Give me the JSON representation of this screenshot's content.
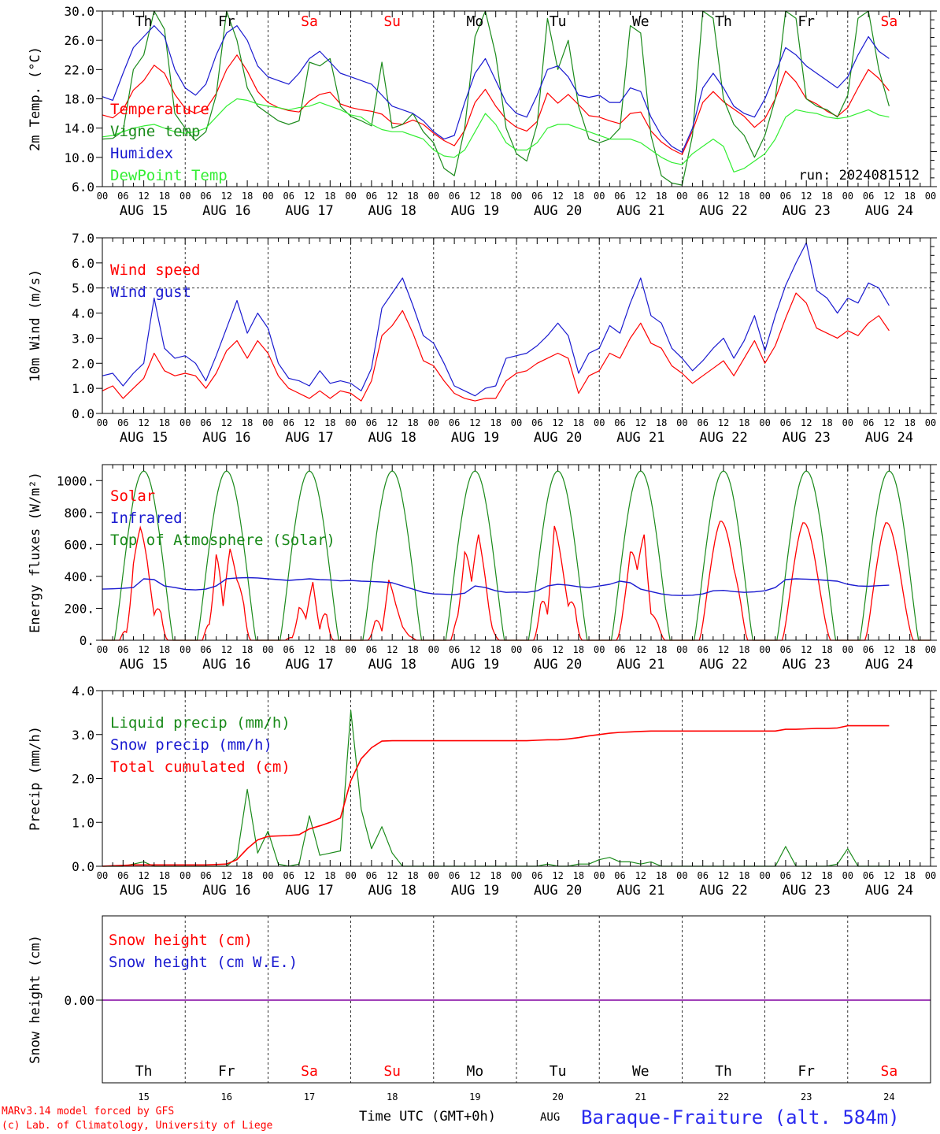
{
  "colors": {
    "red": "#ff0000",
    "dark_green": "#1a8a1a",
    "blue": "#1a1ad0",
    "light_green": "#33ee33",
    "purple": "#8000a0",
    "weekend": "#ff0000",
    "weekday": "#000000",
    "grid": "#000000",
    "title": "#2a2aee"
  },
  "days": {
    "names": [
      "Th",
      "Fr",
      "Sa",
      "Su",
      "Mo",
      "Tu",
      "We",
      "Th",
      "Fr",
      "Sa"
    ],
    "weekend": [
      false,
      false,
      true,
      true,
      false,
      false,
      false,
      false,
      false,
      true
    ],
    "date_labels": [
      "AUG 15",
      "AUG 16",
      "AUG 17",
      "AUG 18",
      "AUG 19",
      "AUG 20",
      "AUG 21",
      "AUG 22",
      "AUG 23",
      "AUG 24"
    ],
    "day_numbers": [
      "15",
      "16",
      "17",
      "18",
      "19",
      "20",
      "21",
      "22",
      "23",
      "24"
    ],
    "hour_ticks": [
      "00",
      "06",
      "12",
      "18"
    ],
    "final_hour": "00"
  },
  "footer": {
    "model": "MARv3.14 model forced by GFS",
    "credit": "(c) Lab. of Climatology, University of Liege",
    "xlabel": "Time UTC (GMT+0h)",
    "month": "AUG",
    "station": "Baraque-Fraiture (alt. 584m)"
  },
  "chart_data": [
    {
      "type": "line",
      "ylabel": "2m Temp. (°C)",
      "ylim": [
        6.0,
        30.0
      ],
      "yticks": [
        "6.0",
        "10.0",
        "14.0",
        "18.0",
        "22.0",
        "26.0",
        "30.0"
      ],
      "annotation": "run: 2024081512",
      "x_hours_step": 3,
      "series": [
        {
          "name": "Temperature",
          "color": "red",
          "values": [
            15.8,
            15.4,
            16.5,
            19.2,
            20.5,
            22.6,
            21.5,
            18.6,
            16.7,
            16.0,
            16.6,
            18.7,
            22.0,
            24.0,
            21.8,
            19.0,
            17.5,
            16.8,
            16.4,
            16.2,
            17.7,
            18.6,
            18.9,
            17.3,
            16.8,
            16.5,
            16.3,
            15.9,
            14.7,
            14.5,
            15.1,
            14.5,
            13.3,
            12.3,
            11.6,
            13.7,
            17.5,
            19.3,
            17.0,
            15.2,
            14.1,
            13.6,
            14.9,
            18.8,
            17.4,
            18.6,
            17.2,
            15.7,
            15.5,
            15.0,
            14.6,
            16.0,
            16.2,
            13.6,
            12.1,
            11.1,
            10.4,
            13.6,
            17.5,
            19.0,
            17.6,
            16.6,
            15.6,
            14.1,
            15.3,
            18.0,
            21.8,
            20.3,
            18.0,
            17.3,
            16.3,
            15.6,
            16.8,
            19.5,
            22.0,
            20.8,
            19.1
          ]
        },
        {
          "name": "Vigne temp",
          "color": "dark_green",
          "values": [
            12.5,
            12.6,
            13.6,
            22.0,
            24.0,
            30.5,
            27.5,
            16.0,
            14.0,
            12.3,
            13.5,
            18.5,
            30.5,
            26.0,
            19.5,
            17.0,
            16.0,
            15.0,
            14.5,
            15.0,
            23.0,
            22.5,
            23.5,
            17.0,
            15.6,
            15.0,
            14.3,
            23.0,
            14.0,
            14.5,
            16.0,
            13.5,
            12.0,
            8.5,
            7.5,
            14.0,
            26.5,
            30.0,
            24.0,
            14.0,
            10.5,
            9.5,
            14.5,
            29.0,
            22.0,
            26.0,
            17.0,
            12.5,
            12.0,
            12.5,
            14.0,
            28.0,
            27.0,
            13.0,
            7.5,
            6.5,
            6.2,
            13.0,
            30.5,
            29.0,
            18.0,
            14.5,
            13.0,
            10.0,
            13.0,
            18.0,
            30.5,
            29.0,
            18.0,
            17.0,
            16.5,
            15.5,
            18.5,
            29.0,
            30.5,
            22.0,
            17.0
          ]
        },
        {
          "name": "Humidex",
          "color": "blue",
          "values": [
            18.3,
            17.8,
            21.5,
            25.0,
            26.5,
            28.0,
            26.5,
            22.0,
            19.5,
            18.5,
            20.0,
            24.0,
            27.0,
            28.0,
            26.0,
            22.5,
            21.0,
            20.5,
            20.0,
            21.5,
            23.5,
            24.5,
            23.0,
            21.5,
            21.0,
            20.5,
            20.0,
            18.5,
            17.0,
            16.5,
            16.0,
            15.0,
            13.5,
            12.5,
            13.0,
            17.5,
            21.5,
            23.5,
            20.5,
            17.5,
            16.0,
            15.5,
            18.5,
            22.0,
            22.5,
            21.0,
            18.5,
            18.2,
            18.5,
            17.5,
            17.5,
            19.5,
            19.0,
            15.5,
            13.0,
            11.5,
            10.7,
            14.0,
            19.5,
            21.5,
            19.5,
            17.0,
            16.0,
            15.5,
            18.0,
            21.5,
            25.0,
            24.0,
            22.5,
            21.5,
            20.5,
            19.5,
            21.0,
            24.0,
            26.5,
            24.5,
            23.5
          ]
        },
        {
          "name": "DewPoint Temp",
          "color": "light_green",
          "values": [
            12.8,
            13.0,
            13.5,
            14.0,
            14.3,
            14.5,
            14.0,
            13.5,
            13.3,
            13.5,
            14.0,
            15.5,
            17.0,
            18.0,
            17.8,
            17.3,
            17.0,
            16.8,
            16.5,
            16.8,
            17.0,
            17.5,
            17.0,
            16.5,
            15.8,
            15.5,
            14.5,
            13.8,
            13.5,
            13.5,
            13.0,
            12.5,
            11.0,
            10.2,
            10.0,
            11.0,
            13.5,
            16.0,
            14.5,
            12.0,
            11.0,
            11.0,
            12.0,
            14.0,
            14.5,
            14.5,
            14.0,
            13.5,
            13.0,
            12.5,
            12.5,
            12.5,
            12.0,
            11.0,
            10.0,
            9.3,
            9.0,
            10.5,
            11.5,
            12.5,
            11.5,
            8.0,
            8.5,
            9.5,
            10.5,
            12.5,
            15.5,
            16.5,
            16.2,
            16.0,
            15.5,
            15.3,
            15.5,
            16.0,
            16.5,
            15.8,
            15.5
          ]
        }
      ]
    },
    {
      "type": "line",
      "ylabel": "10m Wind (m/s)",
      "ylim": [
        0.0,
        7.0
      ],
      "yticks": [
        "0.0",
        "1.0",
        "2.0",
        "3.0",
        "4.0",
        "5.0",
        "6.0",
        "7.0"
      ],
      "reference_line": 5.0,
      "x_hours_step": 3,
      "series": [
        {
          "name": "Wind speed",
          "color": "red",
          "values": [
            0.9,
            1.1,
            0.6,
            1.0,
            1.4,
            2.4,
            1.7,
            1.5,
            1.6,
            1.5,
            1.0,
            1.6,
            2.5,
            2.9,
            2.2,
            2.9,
            2.4,
            1.5,
            1.0,
            0.8,
            0.6,
            0.9,
            0.6,
            0.9,
            0.8,
            0.5,
            1.3,
            3.1,
            3.5,
            4.1,
            3.2,
            2.1,
            1.9,
            1.3,
            0.8,
            0.6,
            0.5,
            0.6,
            0.6,
            1.3,
            1.6,
            1.7,
            2.0,
            2.2,
            2.4,
            2.2,
            0.8,
            1.5,
            1.7,
            2.4,
            2.2,
            3.0,
            3.6,
            2.8,
            2.6,
            1.9,
            1.6,
            1.2,
            1.5,
            1.8,
            2.1,
            1.5,
            2.2,
            2.9,
            2.0,
            2.7,
            3.8,
            4.8,
            4.4,
            3.4,
            3.2,
            3.0,
            3.3,
            3.1,
            3.6,
            3.9,
            3.3
          ]
        },
        {
          "name": "Wind gust",
          "color": "blue",
          "values": [
            1.5,
            1.6,
            1.1,
            1.6,
            2.0,
            4.6,
            2.6,
            2.2,
            2.3,
            2.0,
            1.3,
            2.3,
            3.4,
            4.5,
            3.2,
            4.0,
            3.4,
            2.0,
            1.4,
            1.3,
            1.1,
            1.7,
            1.2,
            1.3,
            1.2,
            0.9,
            1.8,
            4.2,
            4.8,
            5.4,
            4.3,
            3.1,
            2.8,
            2.0,
            1.1,
            0.9,
            0.7,
            1.0,
            1.1,
            2.2,
            2.3,
            2.4,
            2.7,
            3.1,
            3.6,
            3.1,
            1.6,
            2.4,
            2.6,
            3.5,
            3.2,
            4.4,
            5.4,
            3.9,
            3.6,
            2.6,
            2.2,
            1.7,
            2.1,
            2.6,
            3.0,
            2.2,
            2.9,
            3.9,
            2.5,
            3.9,
            5.1,
            6.0,
            6.8,
            4.9,
            4.6,
            4.0,
            4.6,
            4.4,
            5.2,
            5.0,
            4.3
          ]
        }
      ]
    },
    {
      "type": "line",
      "ylabel": "Energy fluxes (W/m²)",
      "ylim": [
        0,
        1100
      ],
      "yticks": [
        "0.",
        "200.",
        "400.",
        "600.",
        "800.",
        "1000."
      ],
      "x_hours_step": 1,
      "solar_peaks": [
        730,
        740,
        470,
        390,
        760,
        740,
        760,
        770,
        760,
        760
      ],
      "solar_cloud_patterns": [
        [
          0.7,
          0.2,
          0.9,
          1.0,
          0.7,
          0.3,
          0.7,
          0.2
        ],
        [
          0.9,
          0.4,
          1.0,
          0.3,
          0.8,
          0.7,
          0.9,
          0.3
        ],
        [
          0.3,
          0.1,
          0.6,
          0.3,
          0.8,
          0.2,
          1.0,
          0.3
        ],
        [
          0.5,
          0.9,
          0.2,
          1.0,
          0.6,
          0.3,
          0.2,
          0.3
        ],
        [
          0.9,
          0.6,
          1.0,
          0.5,
          0.9,
          0.7,
          0.3,
          0.2
        ],
        [
          0.6,
          0.9,
          0.3,
          1.0,
          0.7,
          0.4,
          0.8,
          0.3
        ],
        [
          0.4,
          0.8,
          1.0,
          0.6,
          0.9,
          0.3,
          0.4,
          0.3
        ],
        [
          0.9,
          1.0,
          1.0,
          1.0,
          0.9,
          0.8,
          0.9,
          0.8
        ],
        [
          0.9,
          1.0,
          1.0,
          1.0,
          0.9,
          0.8,
          0.7,
          0.6
        ],
        [
          0.8,
          1.0,
          1.0,
          1.0,
          0.9,
          0.8,
          0.7,
          0.6
        ]
      ],
      "series": [
        {
          "name": "Solar",
          "color": "red"
        },
        {
          "name": "Infrared",
          "color": "blue",
          "values": [
            320,
            322,
            325,
            330,
            385,
            380,
            340,
            330,
            318,
            315,
            320,
            340,
            385,
            390,
            392,
            390,
            385,
            380,
            375,
            380,
            385,
            380,
            378,
            372,
            375,
            370,
            368,
            365,
            360,
            340,
            320,
            300,
            290,
            288,
            285,
            295,
            340,
            330,
            310,
            300,
            302,
            300,
            310,
            340,
            350,
            345,
            335,
            330,
            340,
            350,
            370,
            360,
            320,
            305,
            290,
            282,
            280,
            282,
            290,
            310,
            312,
            305,
            300,
            303,
            310,
            330,
            380,
            385,
            383,
            380,
            375,
            370,
            350,
            340,
            338,
            342,
            345
          ]
        },
        {
          "name": "Top of Atmosphere (Solar)",
          "color": "dark_green",
          "peak": 1060
        }
      ]
    },
    {
      "type": "line",
      "ylabel": "Precip (mm/h)",
      "ylim": [
        0.0,
        4.0
      ],
      "yticks": [
        "0.0",
        "1.0",
        "2.0",
        "3.0",
        "4.0"
      ],
      "x_hours_step": 3,
      "series": [
        {
          "name": "Liquid precip (mm/h)",
          "color": "dark_green",
          "values": [
            0,
            0,
            0,
            0.05,
            0.1,
            0,
            0,
            0,
            0,
            0,
            0,
            0,
            0,
            0.2,
            1.75,
            0.3,
            0.8,
            0.05,
            0,
            0.05,
            1.15,
            0.25,
            0.3,
            0.35,
            3.55,
            1.3,
            0.4,
            0.9,
            0.3,
            0,
            0,
            0,
            0,
            0,
            0,
            0,
            0,
            0,
            0,
            0,
            0,
            0,
            0,
            0.05,
            0,
            0,
            0.05,
            0.05,
            0.15,
            0.2,
            0.1,
            0.1,
            0.05,
            0.1,
            0,
            0,
            0,
            0,
            0,
            0,
            0,
            0,
            0,
            0,
            0,
            0,
            0.45,
            0,
            0,
            0,
            0,
            0.05,
            0.4,
            0,
            0,
            0,
            0
          ]
        },
        {
          "name": "Snow precip (mm/h)",
          "color": "blue",
          "values": []
        },
        {
          "name": "Total cumulated (cm)",
          "color": "red",
          "values": [
            0,
            0.01,
            0.02,
            0.03,
            0.03,
            0.03,
            0.03,
            0.03,
            0.03,
            0.03,
            0.03,
            0.04,
            0.05,
            0.15,
            0.4,
            0.6,
            0.68,
            0.69,
            0.7,
            0.72,
            0.85,
            0.92,
            1.0,
            1.1,
            1.95,
            2.45,
            2.7,
            2.85,
            2.86,
            2.86,
            2.86,
            2.86,
            2.86,
            2.86,
            2.86,
            2.86,
            2.86,
            2.86,
            2.86,
            2.86,
            2.86,
            2.86,
            2.87,
            2.88,
            2.88,
            2.9,
            2.93,
            2.97,
            3.0,
            3.03,
            3.05,
            3.06,
            3.07,
            3.08,
            3.08,
            3.08,
            3.08,
            3.08,
            3.08,
            3.08,
            3.08,
            3.08,
            3.08,
            3.08,
            3.08,
            3.08,
            3.12,
            3.12,
            3.13,
            3.14,
            3.14,
            3.15,
            3.2,
            3.2,
            3.2,
            3.2,
            3.2
          ]
        }
      ]
    },
    {
      "type": "line",
      "ylabel": "Snow height (cm)",
      "yticks": [
        "0.00"
      ],
      "series": [
        {
          "name": "Snow height (cm)",
          "color": "red",
          "value": 0.0
        },
        {
          "name": "Snow height (cm W.E.)",
          "color": "blue",
          "value": 0.0
        }
      ]
    }
  ]
}
